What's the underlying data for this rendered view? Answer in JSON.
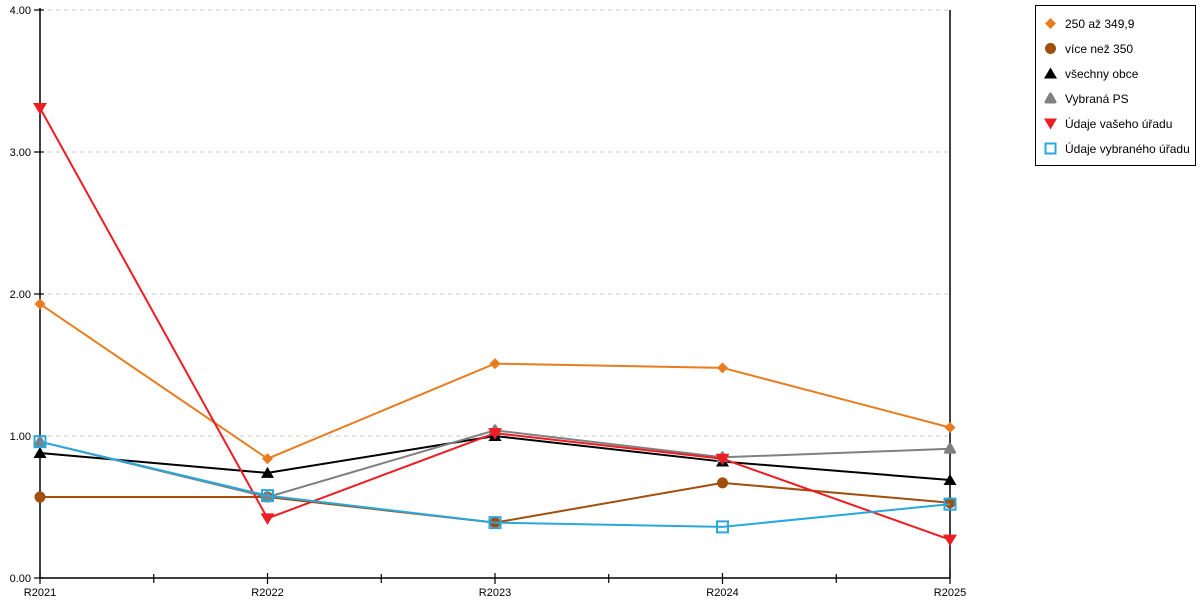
{
  "chart_data": {
    "type": "line",
    "categories": [
      "R2021",
      "R2022",
      "R2023",
      "R2024",
      "R2025"
    ],
    "series": [
      {
        "name": "250 až 349,9",
        "marker": "diamond",
        "color": "#E87C1E",
        "values": [
          1.93,
          0.84,
          1.51,
          1.48,
          1.06
        ]
      },
      {
        "name": "více než 350",
        "marker": "circle",
        "color": "#A24E0D",
        "values": [
          0.57,
          0.57,
          0.39,
          0.67,
          0.53
        ]
      },
      {
        "name": "všechny obce",
        "marker": "triangle-up",
        "color": "#000000",
        "values": [
          0.88,
          0.74,
          1.0,
          0.82,
          0.69
        ]
      },
      {
        "name": "Vybraná PS",
        "marker": "triangle-up-rounded",
        "color": "#808080",
        "values": [
          0.96,
          0.57,
          1.04,
          0.85,
          0.91
        ]
      },
      {
        "name": "Údaje vašeho úřadu",
        "marker": "triangle-down",
        "color": "#EE1C23",
        "values": [
          3.31,
          0.42,
          1.02,
          0.84,
          0.27
        ]
      },
      {
        "name": "Údaje vybraného úřadu",
        "marker": "square-open",
        "color": "#29A8DC",
        "values": [
          0.96,
          0.58,
          0.39,
          0.36,
          0.52
        ]
      }
    ],
    "ylim": [
      0,
      4
    ],
    "ytick_labels": [
      "0.00",
      "1.00",
      "2.00",
      "3.00",
      "4.00"
    ],
    "xlabel": "",
    "ylabel": "",
    "title": "",
    "grid": "horizontal-dashed",
    "legend_position": "top-right"
  },
  "colors": {
    "background": "#FFFFFF",
    "axis": "#000000",
    "grid": "#C9C9C9"
  }
}
